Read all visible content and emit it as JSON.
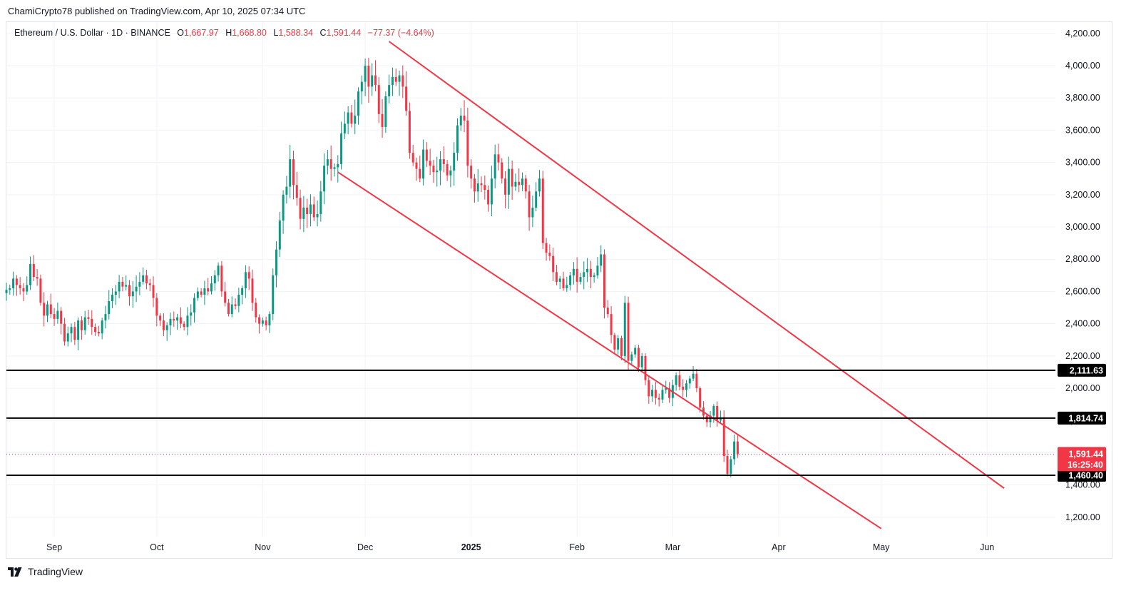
{
  "header": {
    "publisher": "ChamiCrypto78 published on TradingView.com, Apr 10, 2025 07:34 UTC"
  },
  "legend": {
    "symbol": "Ethereum / U.S. Dollar · 1D · BINANCE",
    "open_key": "O",
    "open": "1,667.97",
    "high_key": "H",
    "high": "1,668.80",
    "low_key": "L",
    "low": "1,588.34",
    "close_key": "C",
    "close": "1,591.44",
    "change": "−77.37 (−4.64%)"
  },
  "price_tags": {
    "level_upper": "2,111.63",
    "level_middle": "1,814.74",
    "last_price": "1,591.44",
    "countdown": "16:25:40",
    "level_lower": "1,460.40"
  },
  "footer": {
    "brand": "TradingView"
  },
  "colors": {
    "up": "#089981",
    "down": "#f23645",
    "channel": "#f23645",
    "level_line": "#000000",
    "grid": "#f0f3fa"
  },
  "chart_data": {
    "type": "candlestick",
    "y_axis": {
      "ticks": [
        1200,
        1400,
        1600,
        1800,
        2000,
        2200,
        2400,
        2600,
        2800,
        3000,
        3200,
        3400,
        3600,
        3800,
        4000,
        4200
      ],
      "tick_labels": [
        "1,200.00",
        "1,400.00",
        "1,600.00",
        "1,800.00",
        "2,000.00",
        "2,200.00",
        "2,400.00",
        "2,600.00",
        "2,800.00",
        "3,000.00",
        "3,200.00",
        "3,400.00",
        "3,600.00",
        "3,800.00",
        "4,000.00",
        "4,200.00"
      ],
      "range": [
        1080,
        4270
      ]
    },
    "x_axis": {
      "labels": [
        "Sep",
        "Oct",
        "Nov",
        "Dec",
        "2025",
        "Feb",
        "Mar",
        "Apr",
        "May",
        "Jun"
      ],
      "dates": [
        "2024-09-01",
        "2024-10-01",
        "2024-11-01",
        "2024-12-01",
        "2025-01-01",
        "2025-02-01",
        "2025-03-01",
        "2025-04-01",
        "2025-05-01",
        "2025-06-01"
      ],
      "range": [
        "2024-08-18",
        "2025-06-21"
      ]
    },
    "horizontal_levels": [
      2111.63,
      1814.74,
      1460.4
    ],
    "last_price": 1591.44,
    "channel_lines": [
      {
        "name": "upper",
        "points": [
          [
            "2024-12-08",
            4150
          ],
          [
            "2025-06-06",
            1380
          ]
        ]
      },
      {
        "name": "lower",
        "points": [
          [
            "2024-11-23",
            3340
          ],
          [
            "2025-05-01",
            1130
          ]
        ]
      }
    ],
    "candles_anchor": {
      "start": "2024-08-18",
      "closes": [
        2610,
        2620,
        2680,
        2640,
        2620,
        2600,
        2640,
        2770,
        2690,
        2680,
        2530,
        2450,
        2520,
        2460,
        2430,
        2480,
        2400,
        2290,
        2340,
        2380,
        2300,
        2420,
        2360,
        2440,
        2430,
        2380,
        2350,
        2340,
        2420,
        2460,
        2540,
        2580,
        2600,
        2660,
        2630,
        2640,
        2570,
        2600,
        2630,
        2660,
        2700,
        2650,
        2640,
        2560,
        2450,
        2420,
        2360,
        2390,
        2430,
        2420,
        2440,
        2400,
        2380,
        2450,
        2470,
        2560,
        2600,
        2580,
        2620,
        2600,
        2650,
        2700,
        2760,
        2600,
        2530,
        2460,
        2520,
        2510,
        2580,
        2620,
        2720,
        2680,
        2530,
        2440,
        2400,
        2420,
        2390,
        2460,
        2700,
        2860,
        3040,
        3200,
        3250,
        3420,
        3260,
        3180,
        3050,
        3120,
        3080,
        3140,
        3060,
        3080,
        3220,
        3380,
        3420,
        3360,
        3370,
        3390,
        3580,
        3640,
        3710,
        3640,
        3690,
        3840,
        3900,
        4000,
        3870,
        3940,
        3880,
        3700,
        3620,
        3810,
        3880,
        3930,
        3900,
        3940,
        3870,
        3720,
        3460,
        3400,
        3360,
        3300,
        3480,
        3410,
        3380,
        3340,
        3350,
        3420,
        3390,
        3320,
        3350,
        3460,
        3630,
        3690,
        3660,
        3380,
        3300,
        3220,
        3270,
        3260,
        3230,
        3140,
        3300,
        3450,
        3400,
        3300,
        3200,
        3360,
        3250,
        3280,
        3260,
        3300,
        3220,
        3060,
        3120,
        3220,
        3300,
        2900,
        2840,
        2820,
        2720,
        2660,
        2680,
        2620,
        2640,
        2700,
        2740,
        2660,
        2690,
        2720,
        2740,
        2690,
        2700,
        2760,
        2830,
        2500,
        2460,
        2330,
        2240,
        2310,
        2200,
        2530,
        2170,
        2210,
        2250,
        2130,
        2200,
        2050,
        1950,
        1990,
        1940,
        1930,
        1990,
        2000,
        1940,
        2020,
        2080,
        2010,
        1990,
        2030,
        2060,
        2090,
        2000,
        1880,
        1830,
        1790,
        1830,
        1890,
        1800,
        1820,
        1580,
        1470,
        1560,
        1670,
        1591.44
      ]
    }
  }
}
